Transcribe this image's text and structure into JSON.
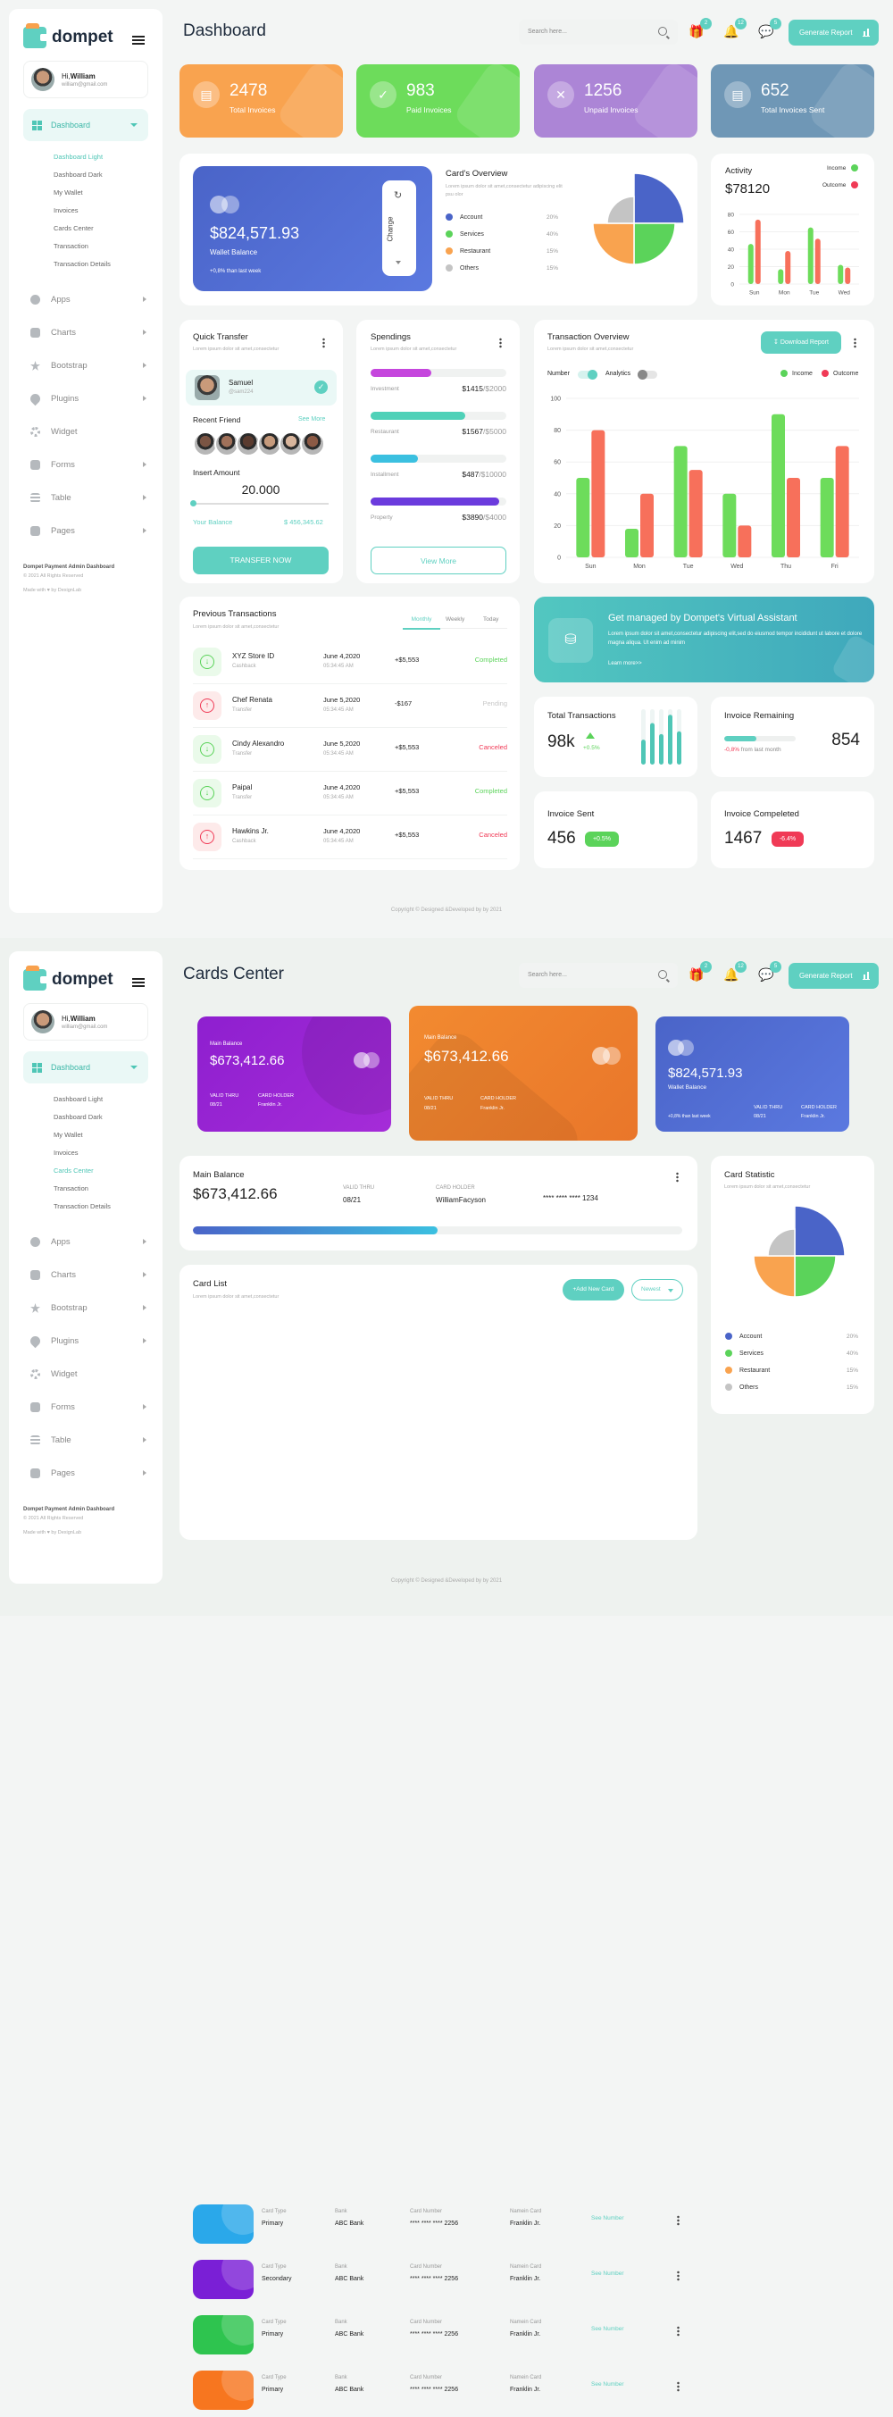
{
  "brand": {
    "name": "dompet"
  },
  "user": {
    "greeting": "Hi,",
    "name": "William",
    "email": "william@gmail.com"
  },
  "sidebar": {
    "active": "Dashboard",
    "sub_items": [
      "Dashboard Light",
      "Dashboard Dark",
      "My Wallet",
      "Invoices",
      "Cards Center",
      "Transaction",
      "Transaction Details"
    ],
    "items": [
      {
        "label": "Apps",
        "arrow": true
      },
      {
        "label": "Charts",
        "arrow": true
      },
      {
        "label": "Bootstrap",
        "arrow": true
      },
      {
        "label": "Plugins",
        "arrow": true
      },
      {
        "label": "Widget",
        "arrow": false
      },
      {
        "label": "Forms",
        "arrow": true
      },
      {
        "label": "Table",
        "arrow": true
      },
      {
        "label": "Pages",
        "arrow": true
      }
    ],
    "footer_title": "Dompet Payment Admin Dashboard",
    "footer_rights": "© 2021 All Rights Reserved",
    "footer_made": "Made with",
    "footer_by": "by DexignLab"
  },
  "topbar": {
    "search_placeholder": "Search here...",
    "badges": [
      "2",
      "12",
      "5"
    ],
    "generate_label": "Generate Report"
  },
  "page1": {
    "title": "Dashboard",
    "stats": [
      {
        "value": "2478",
        "label": "Total Invoices",
        "color": "#f9a34f"
      },
      {
        "value": "983",
        "label": "Paid Invoices",
        "color": "#6ddc5b"
      },
      {
        "value": "1256",
        "label": "Unpaid Invoices",
        "color": "#ac85d6"
      },
      {
        "value": "652",
        "label": "Total Invoices Sent",
        "color": "#6f97b6"
      }
    ],
    "wallet": {
      "amount": "$824,571.93",
      "label": "Wallet Balance",
      "change": "+0,8% than last week",
      "change_btn": "Change"
    },
    "cards_overview": {
      "title": "Card's Overview",
      "subtitle": "Lorem ipsum dolor sit amet,consectetur adipiscing elit psu olor",
      "legend": [
        {
          "label": "Account",
          "value": "20%",
          "color": "#4a64c8"
        },
        {
          "label": "Services",
          "value": "40%",
          "color": "#5bd35a"
        },
        {
          "label": "Restaurant",
          "value": "15%",
          "color": "#f9a34f"
        },
        {
          "label": "Others",
          "value": "15%",
          "color": "#c4c4c4"
        }
      ]
    },
    "activity": {
      "title": "Activity",
      "value": "$78120",
      "legend": [
        {
          "label": "Income",
          "color": "#5bd35a"
        },
        {
          "label": "Outcome",
          "color": "#f03a56"
        }
      ]
    },
    "quick_transfer": {
      "title": "Quick Transfer",
      "subtitle": "Lorem ipsum dolor sit amet,consectetur",
      "person_name": "Samuel",
      "person_handle": "@sam224",
      "recent_friend": "Recent Friend",
      "see_more": "See More",
      "insert_amount": "Insert Amount",
      "amount": "20.000",
      "balance_label": "Your Balance",
      "balance_value": "$ 456,345.62",
      "button": "TRANSFER NOW"
    },
    "spendings": {
      "title": "Spendings",
      "subtitle": "Lorem ipsum dolor sit amet,consectetur",
      "items": [
        {
          "label": "Investment",
          "spent": "$1415",
          "total": "/$2000",
          "fraction": 0.45,
          "color": "#c546dd"
        },
        {
          "label": "Restaurant",
          "spent": "$1567",
          "total": "/$5000",
          "fraction": 0.7,
          "color": "#4fd1b8"
        },
        {
          "label": "Installment",
          "spent": "$487",
          "total": "/$10000",
          "fraction": 0.35,
          "color": "#3bc0e0"
        },
        {
          "label": "Property",
          "spent": "$3890",
          "total": "/$4000",
          "fraction": 0.95,
          "color": "#6b3bdd"
        }
      ],
      "button": "View More"
    },
    "transaction_overview": {
      "title": "Transaction Overview",
      "subtitle": "Lorem ipsum dolor sit amet,consectetur",
      "download": "Download Report",
      "toggle_number": "Number",
      "toggle_analytics": "Analytics"
    },
    "previous_transactions": {
      "title": "Previous Transactions",
      "subtitle": "Lorem ipsum dolor sit amet,consectetur",
      "tabs": [
        "Monthly",
        "Weekly",
        "Today"
      ],
      "rows": [
        {
          "name": "XYZ Store ID",
          "type": "Cashback",
          "date": "June 4,2020",
          "time": "05:34:45 AM",
          "amount": "+$5,553",
          "status": "Completed",
          "dir": "in"
        },
        {
          "name": "Chef Renata",
          "type": "Transfer",
          "date": "June 5,2020",
          "time": "05:34:45 AM",
          "amount": "-$167",
          "status": "Pending",
          "dir": "out"
        },
        {
          "name": "Cindy Alexandro",
          "type": "Transfer",
          "date": "June 5,2020",
          "time": "05:34:45 AM",
          "amount": "+$5,553",
          "status": "Canceled",
          "dir": "in"
        },
        {
          "name": "Paipal",
          "type": "Transfer",
          "date": "June 4,2020",
          "time": "05:34:45 AM",
          "amount": "+$5,553",
          "status": "Completed",
          "dir": "in"
        },
        {
          "name": "Hawkins Jr.",
          "type": "Cashback",
          "date": "June 4,2020",
          "time": "05:34:45 AM",
          "amount": "+$5,553",
          "status": "Canceled",
          "dir": "out"
        }
      ]
    },
    "virtual_assistant": {
      "title": "Get managed by Dompet's Virtual Assistant",
      "text": "Lorem ipsum dolor sit amet,consectetur adipiscing elit,sed do eiusmod tempor incididunt ut labore et dolore magna aliqua. Ut enim ad minim",
      "link": "Learn more>>"
    },
    "total_transactions": {
      "title": "Total Transactions",
      "value": "98k",
      "change": "+0.5%"
    },
    "invoice_remaining": {
      "title": "Invoice Remaining",
      "value": "854",
      "change": "-0,8%",
      "change_text": "from last month",
      "fraction": 0.45
    },
    "invoice_sent": {
      "title": "Invoice Sent",
      "value": "456",
      "badge": "+0.5%"
    },
    "invoice_completed": {
      "title": "Invoice Compeleted",
      "value": "1467",
      "badge": "-6.4%"
    },
    "copyright": "Copyright © Designed &Developed by by 2021"
  },
  "page2": {
    "title": "Cards Center",
    "cards": [
      {
        "main_label": "Main Balance",
        "amount": "$673,412.66",
        "valid_label": "VALID THRU",
        "valid": "08/21",
        "holder_label": "CARD HOLDER",
        "holder": "Franklin Jr."
      },
      {
        "main_label": "Main Balance",
        "amount": "$673,412.66",
        "valid_label": "VALID THRU",
        "valid": "08/21",
        "holder_label": "CARD HOLDER",
        "holder": "Franklin Jr."
      },
      {
        "amount": "$824,571.93",
        "wallet_label": "Wallet Balance",
        "change": "+0,8% than last week",
        "valid_label": "VALID THRU",
        "valid": "08/21",
        "holder_label": "CARD HOLDER",
        "holder": "Franklin Jr."
      }
    ],
    "main_balance": {
      "title": "Main Balance",
      "amount": "$673,412.66",
      "valid_label": "VALID THRU",
      "valid": "08/21",
      "holder_label": "CARD HOLDER",
      "holder": "WilliamFacyson",
      "number": "**** **** **** 1234",
      "fraction": 0.5
    },
    "card_statistic": {
      "title": "Card Statistic",
      "subtitle": "Lorem ipsum dolor sit amet,consectetur",
      "legend": [
        {
          "label": "Account",
          "value": "20%",
          "color": "#4a64c8"
        },
        {
          "label": "Services",
          "value": "40%",
          "color": "#5bd35a"
        },
        {
          "label": "Restaurant",
          "value": "15%",
          "color": "#f9a34f"
        },
        {
          "label": "Others",
          "value": "15%",
          "color": "#c4c4c4"
        }
      ]
    },
    "card_list": {
      "title": "Card List",
      "subtitle": "Lorem ipsum dolor sit amet,consectetur",
      "add_button": "+Add New Card",
      "sort": "Newest",
      "h_type": "Card Type",
      "h_bank": "Bank",
      "h_number": "Card Number",
      "h_name": "Namein Card",
      "see": "See Number",
      "rows": [
        {
          "type": "Primary",
          "bank": "ABC Bank",
          "number": "**** **** **** 2256",
          "name": "Franklin Jr.",
          "color": "#2aa8ea"
        },
        {
          "type": "Secondary",
          "bank": "ABC Bank",
          "number": "**** **** **** 2256",
          "name": "Franklin Jr.",
          "color": "#7a1fd6"
        },
        {
          "type": "Primary",
          "bank": "ABC Bank",
          "number": "**** **** **** 2256",
          "name": "Franklin Jr.",
          "color": "#2ec44f"
        },
        {
          "type": "Primary",
          "bank": "ABC Bank",
          "number": "**** **** **** 2256",
          "name": "Franklin Jr.",
          "color": "#f7761f"
        }
      ]
    },
    "copyright": "Copyright © Designed &Developed by by 2021"
  },
  "chart_data": [
    {
      "type": "bar",
      "name": "activity",
      "categories": [
        "Sun",
        "Mon",
        "Tue",
        "Wed"
      ],
      "series": [
        {
          "name": "Income",
          "values": [
            46,
            17,
            65,
            22
          ]
        },
        {
          "name": "Outcome",
          "values": [
            74,
            38,
            52,
            19
          ]
        }
      ],
      "ylim": [
        0,
        80
      ],
      "yticks": [
        0,
        20,
        40,
        60,
        80
      ]
    },
    {
      "type": "bar",
      "name": "transaction-overview",
      "categories": [
        "Sun",
        "Mon",
        "Tue",
        "Wed",
        "Thu",
        "Fri"
      ],
      "series": [
        {
          "name": "Income",
          "values": [
            50,
            18,
            70,
            40,
            90,
            50
          ]
        },
        {
          "name": "Outcome",
          "values": [
            80,
            40,
            55,
            20,
            50,
            70
          ]
        }
      ],
      "ylim": [
        0,
        100
      ],
      "yticks": [
        0,
        20,
        40,
        60,
        80,
        100
      ]
    },
    {
      "type": "bar",
      "name": "total-transactions-mini",
      "values": [
        0.45,
        0.75,
        0.55,
        0.9,
        0.6
      ]
    }
  ]
}
